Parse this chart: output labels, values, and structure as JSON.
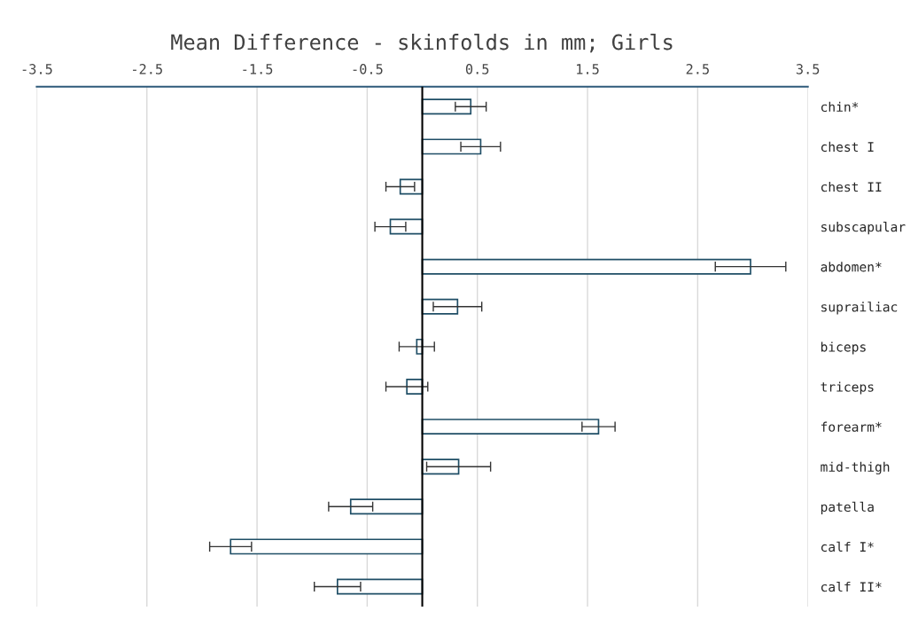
{
  "chart_data": {
    "type": "bar",
    "orientation": "horizontal",
    "title": "Mean Difference - skinfolds in mm; Girls",
    "categories": [
      "chin*",
      "chest I",
      "chest II",
      "subscapular",
      "abdomen*",
      "suprailiac",
      "biceps",
      "triceps",
      "forearm*",
      "mid-thigh",
      "patella",
      "calf I*",
      "calf II*"
    ],
    "series": [
      {
        "color": "#1f4e66",
        "values": [
          0.44,
          0.53,
          -0.2,
          -0.29,
          2.98,
          0.32,
          -0.05,
          -0.14,
          1.6,
          0.33,
          -0.65,
          -1.74,
          -0.77
        ],
        "errors": [
          0.14,
          0.18,
          0.13,
          0.14,
          0.32,
          0.22,
          0.16,
          0.19,
          0.15,
          0.29,
          0.2,
          0.19,
          0.21
        ]
      }
    ],
    "xlim": [
      -3.5,
      3.5
    ],
    "xticks": [
      -3.5,
      -2.5,
      -1.5,
      -0.5,
      0.5,
      1.5,
      2.5,
      3.5
    ],
    "ref_lines": [
      {
        "axis": "x",
        "value": 0,
        "color": "#000000"
      }
    ],
    "grid": "x",
    "legend": false
  }
}
